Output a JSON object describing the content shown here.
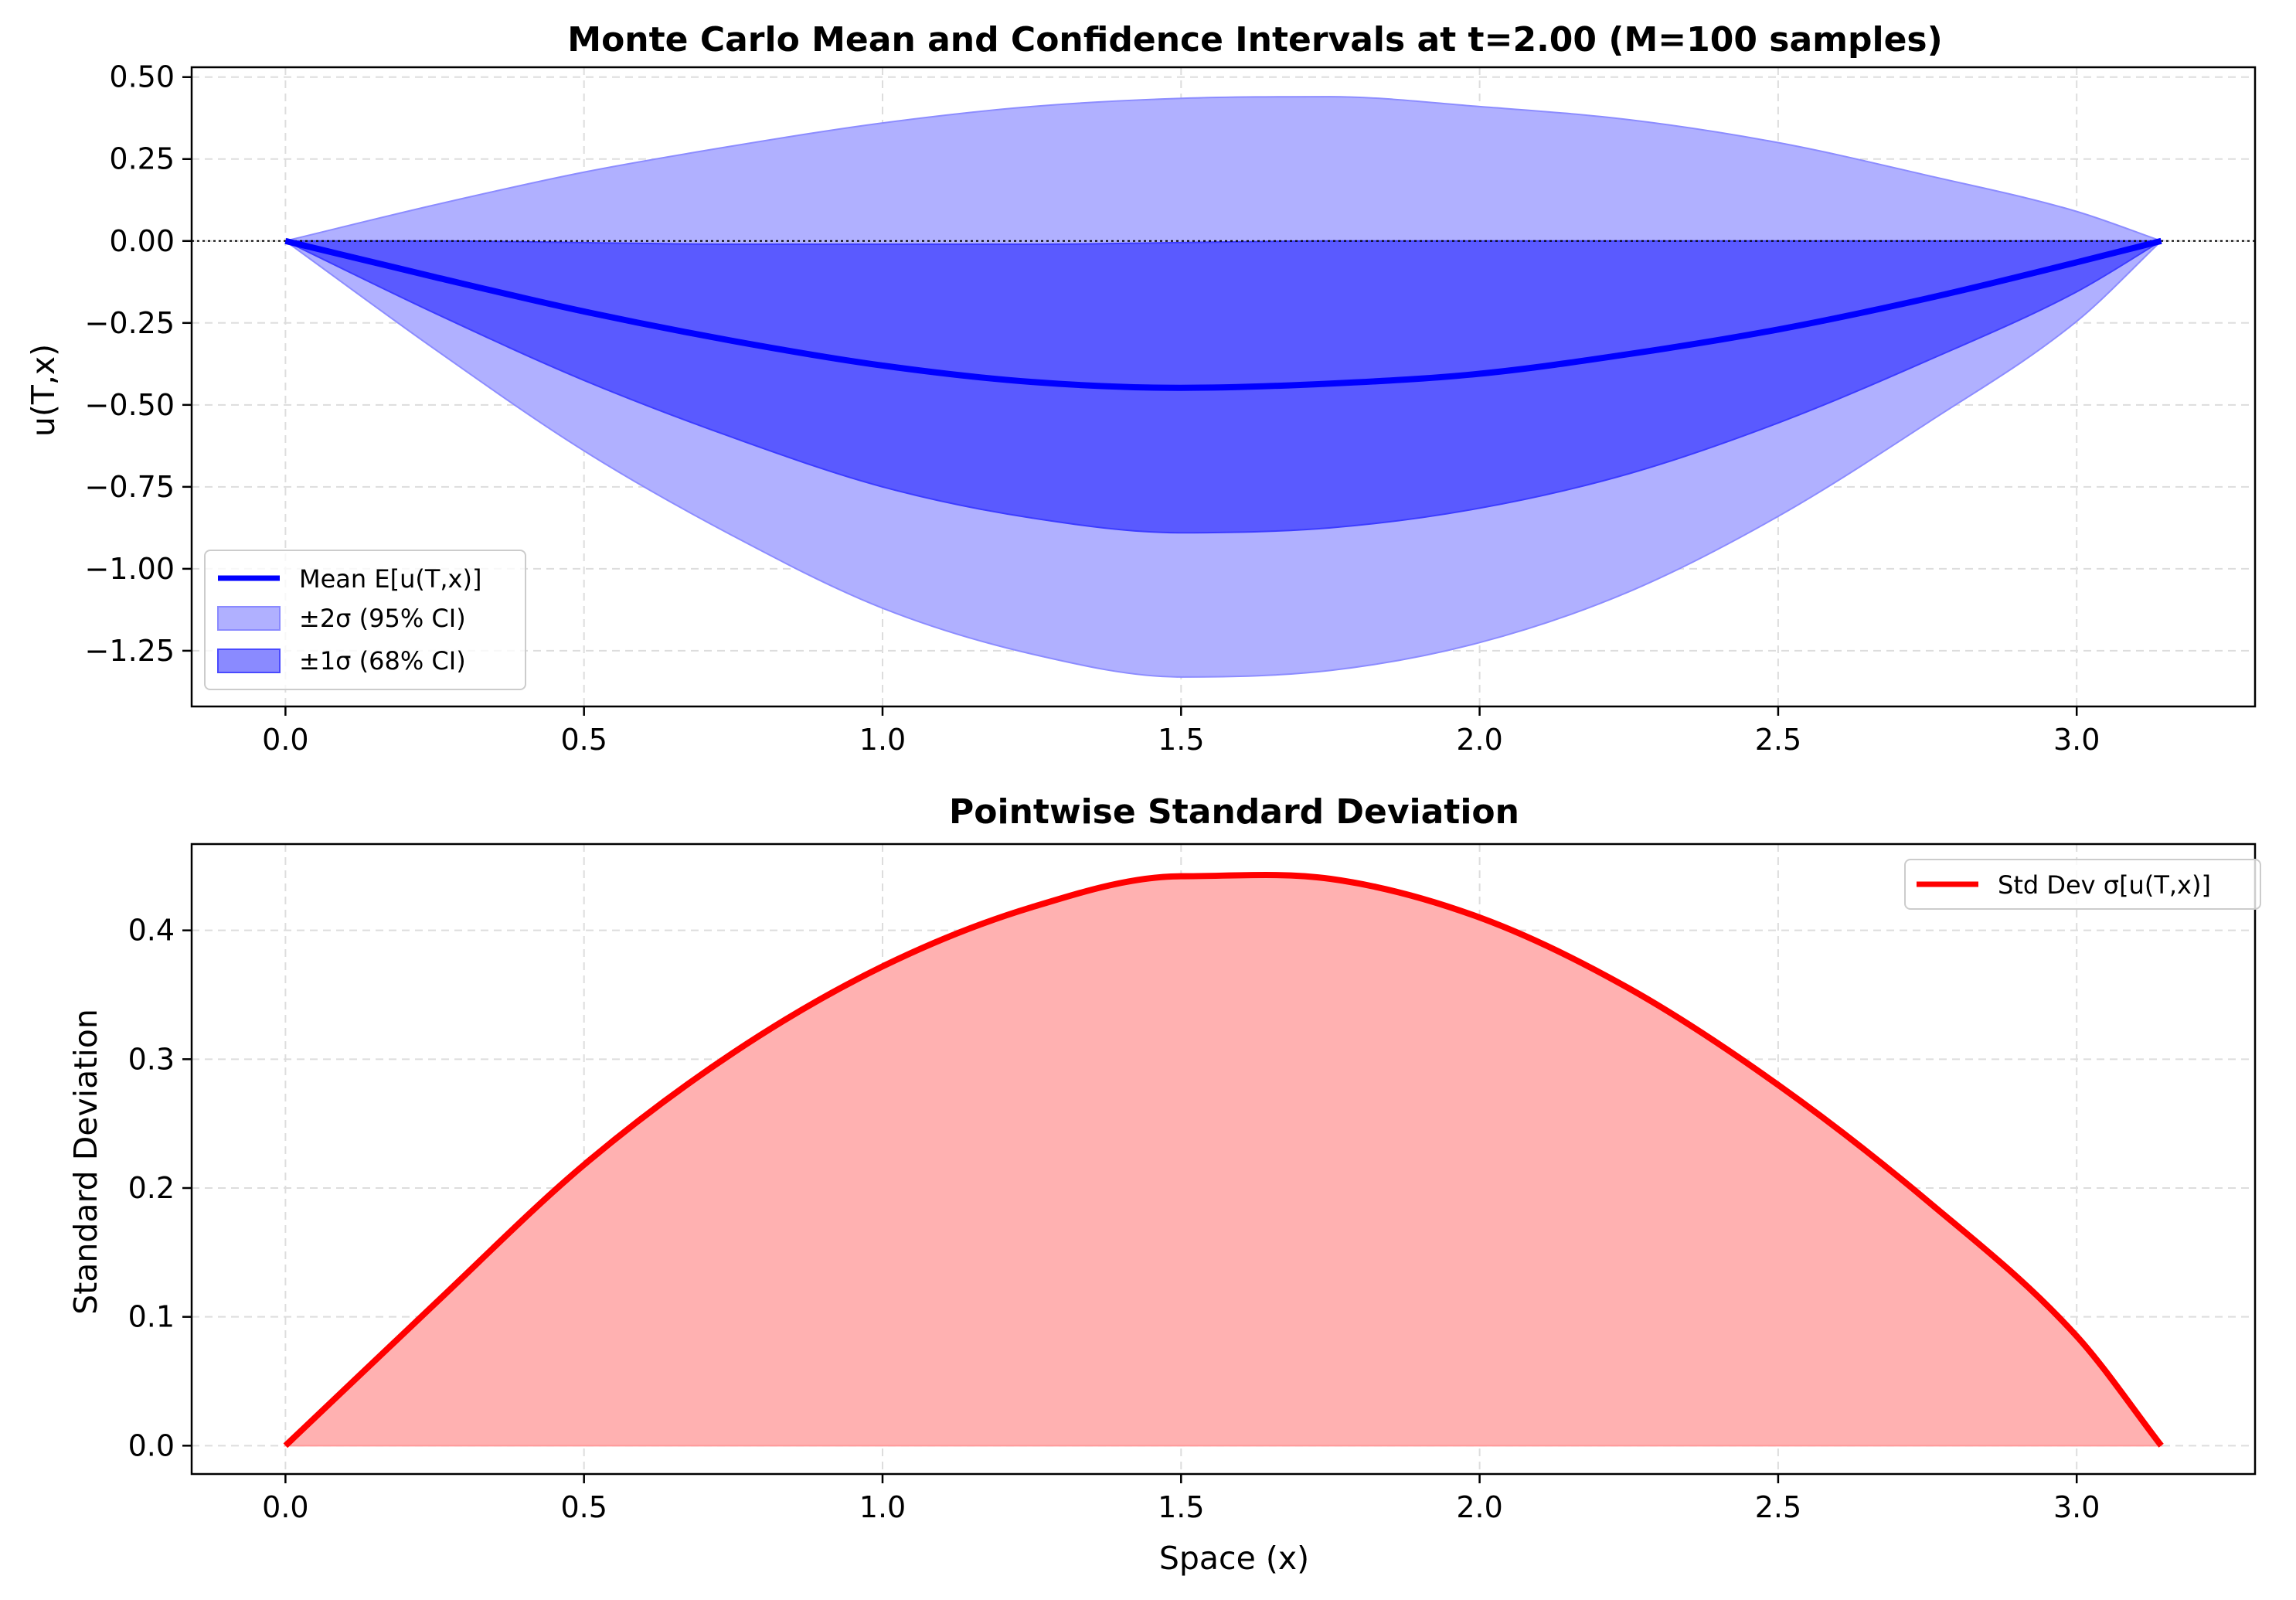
{
  "colors": {
    "mean_line": "#0000ff",
    "band_2sigma": "#b0b0ff",
    "band_1sigma": "#5a5aff",
    "std_line": "#ff0000",
    "std_fill": "#ffb1b1",
    "grid": "#dddddd",
    "zero_line": "#000000"
  },
  "chart_data": [
    {
      "type": "line",
      "title": "Monte Carlo Mean and Confidence Intervals at t=2.00 (M=100 samples)",
      "xlabel": "",
      "ylabel": "u(T,x)",
      "xlim": [
        -0.1571,
        3.2987
      ],
      "ylim": [
        -1.42,
        0.53
      ],
      "xticks": [
        0.0,
        0.5,
        1.0,
        1.5,
        2.0,
        2.5,
        3.0
      ],
      "xtick_labels": [
        "0.0",
        "0.5",
        "1.0",
        "1.5",
        "2.0",
        "2.5",
        "3.0"
      ],
      "yticks": [
        0.5,
        0.25,
        0.0,
        -0.25,
        -0.5,
        -0.75,
        -1.0,
        -1.25
      ],
      "ytick_labels": [
        "0.50",
        "0.25",
        "0.00",
        "−0.25",
        "−0.50",
        "−0.75",
        "−1.00",
        "−1.25"
      ],
      "grid": true,
      "zero_line": true,
      "legend_position": "lower-left",
      "legend": [
        "Mean E[u(T,x)]",
        "±2σ (95% CI)",
        "±1σ (68% CI)"
      ],
      "x": [
        0.0,
        0.25,
        0.5,
        0.75,
        1.0,
        1.25,
        1.5,
        1.75,
        2.0,
        2.25,
        2.5,
        2.75,
        3.0,
        3.1416
      ],
      "series": [
        {
          "name": "Mean E[u(T,x)]",
          "kind": "line",
          "values": [
            0.0,
            -0.11,
            -0.215,
            -0.305,
            -0.38,
            -0.43,
            -0.448,
            -0.435,
            -0.405,
            -0.345,
            -0.27,
            -0.175,
            -0.065,
            0.0
          ]
        },
        {
          "name": "±2σ (95% CI)",
          "kind": "band",
          "lower": [
            0.0,
            -0.33,
            -0.64,
            -0.9,
            -1.12,
            -1.26,
            -1.33,
            -1.31,
            -1.225,
            -1.07,
            -0.84,
            -0.555,
            -0.245,
            0.0
          ],
          "upper": [
            0.0,
            0.11,
            0.21,
            0.29,
            0.36,
            0.41,
            0.435,
            0.44,
            0.41,
            0.37,
            0.3,
            0.2,
            0.09,
            0.0
          ]
        },
        {
          "name": "±1σ (68% CI)",
          "kind": "band",
          "lower": [
            0.0,
            -0.22,
            -0.425,
            -0.6,
            -0.75,
            -0.845,
            -0.89,
            -0.875,
            -0.815,
            -0.71,
            -0.555,
            -0.365,
            -0.155,
            0.0
          ],
          "upper": [
            0.0,
            0.0,
            -0.005,
            -0.01,
            -0.01,
            -0.01,
            -0.005,
            0.0,
            0.0,
            0.0,
            0.0,
            0.0,
            0.0,
            0.0
          ]
        }
      ]
    },
    {
      "type": "area",
      "title": "Pointwise Standard Deviation",
      "xlabel": "Space (x)",
      "ylabel": "Standard Deviation",
      "xlim": [
        -0.1571,
        3.2987
      ],
      "ylim": [
        -0.022,
        0.467
      ],
      "xticks": [
        0.0,
        0.5,
        1.0,
        1.5,
        2.0,
        2.5,
        3.0
      ],
      "xtick_labels": [
        "0.0",
        "0.5",
        "1.0",
        "1.5",
        "2.0",
        "2.5",
        "3.0"
      ],
      "yticks": [
        0.0,
        0.1,
        0.2,
        0.3,
        0.4
      ],
      "ytick_labels": [
        "0.0",
        "0.1",
        "0.2",
        "0.3",
        "0.4"
      ],
      "grid": true,
      "legend_position": "upper-right",
      "legend": [
        "Std Dev σ[u(T,x)]"
      ],
      "x": [
        0.0,
        0.25,
        0.5,
        0.75,
        1.0,
        1.25,
        1.5,
        1.75,
        2.0,
        2.25,
        2.5,
        2.75,
        3.0,
        3.1416
      ],
      "series": [
        {
          "name": "Std Dev σ[u(T,x)]",
          "values": [
            0.0,
            0.11,
            0.218,
            0.305,
            0.372,
            0.418,
            0.442,
            0.44,
            0.41,
            0.355,
            0.28,
            0.19,
            0.085,
            0.0
          ]
        }
      ]
    }
  ]
}
